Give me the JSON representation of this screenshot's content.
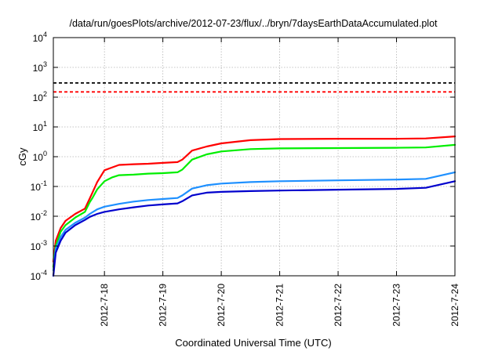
{
  "chart_data": {
    "type": "line",
    "title": "/data/run/goesPlots/archive/2012-07-23/flux/../bryn/7daysEarthDataAccumulated.plot",
    "xlabel": "Coordinated Universal Time (UTC)",
    "ylabel": "cGy",
    "xlim": [
      "2012-07-17 03:00",
      "2012-07-24 00:00"
    ],
    "ylim": [
      0.0001,
      10000
    ],
    "yscale": "log",
    "grid": true,
    "x_ticks": [
      "2012-7-18",
      "2012-7-19",
      "2012-7-20",
      "2012-7-21",
      "2012-7-22",
      "2012-7-23",
      "2012-7-24"
    ],
    "y_ticks": [
      {
        "base": "10",
        "exp": "-4",
        "value": 0.0001
      },
      {
        "base": "10",
        "exp": "-3",
        "value": 0.001
      },
      {
        "base": "10",
        "exp": "-2",
        "value": 0.01
      },
      {
        "base": "10",
        "exp": "-1",
        "value": 0.1
      },
      {
        "base": "10",
        "exp": "0",
        "value": 1
      },
      {
        "base": "10",
        "exp": "1",
        "value": 10
      },
      {
        "base": "10",
        "exp": "2",
        "value": 100
      },
      {
        "base": "10",
        "exp": "3",
        "value": 1000
      },
      {
        "base": "10",
        "exp": "4",
        "value": 10000
      }
    ],
    "thresholds": [
      {
        "value": 300,
        "color": "#000000",
        "style": "dashed"
      },
      {
        "value": 150,
        "color": "#ff0000",
        "style": "dashed"
      }
    ],
    "series": [
      {
        "color": "#ff0000",
        "x": [
          "2012-07-17 03:00",
          "2012-07-17 04:00",
          "2012-07-17 06:00",
          "2012-07-17 08:00",
          "2012-07-17 12:00",
          "2012-07-17 16:00",
          "2012-07-17 18:00",
          "2012-07-17 19:00",
          "2012-07-17 21:00",
          "2012-07-18 00:00",
          "2012-07-18 03:00",
          "2012-07-18 06:00",
          "2012-07-18 12:00",
          "2012-07-18 18:00",
          "2012-07-19 00:00",
          "2012-07-19 06:00",
          "2012-07-19 08:00",
          "2012-07-19 12:00",
          "2012-07-19 18:00",
          "2012-07-20 00:00",
          "2012-07-20 12:00",
          "2012-07-21 00:00",
          "2012-07-22 00:00",
          "2012-07-23 00:00",
          "2012-07-23 12:00",
          "2012-07-24 00:00"
        ],
        "values": [
          0.0003,
          0.0015,
          0.004,
          0.007,
          0.012,
          0.018,
          0.04,
          0.06,
          0.14,
          0.35,
          0.43,
          0.53,
          0.56,
          0.58,
          0.62,
          0.66,
          0.8,
          1.6,
          2.2,
          2.8,
          3.6,
          3.9,
          4.0,
          4.0,
          4.1,
          4.8
        ]
      },
      {
        "color": "#00ee00",
        "x": [
          "2012-07-17 03:00",
          "2012-07-17 04:00",
          "2012-07-17 06:00",
          "2012-07-17 08:00",
          "2012-07-17 12:00",
          "2012-07-17 16:00",
          "2012-07-17 18:00",
          "2012-07-17 19:00",
          "2012-07-17 21:00",
          "2012-07-18 00:00",
          "2012-07-18 03:00",
          "2012-07-18 06:00",
          "2012-07-18 12:00",
          "2012-07-18 18:00",
          "2012-07-19 00:00",
          "2012-07-19 06:00",
          "2012-07-19 08:00",
          "2012-07-19 12:00",
          "2012-07-19 18:00",
          "2012-07-20 00:00",
          "2012-07-20 12:00",
          "2012-07-21 00:00",
          "2012-07-22 00:00",
          "2012-07-23 00:00",
          "2012-07-23 12:00",
          "2012-07-24 00:00"
        ],
        "values": [
          0.0002,
          0.001,
          0.003,
          0.005,
          0.009,
          0.014,
          0.03,
          0.04,
          0.08,
          0.15,
          0.2,
          0.24,
          0.25,
          0.27,
          0.28,
          0.3,
          0.37,
          0.8,
          1.2,
          1.5,
          1.8,
          1.9,
          1.95,
          2.0,
          2.05,
          2.5
        ]
      },
      {
        "color": "#1e90ff",
        "x": [
          "2012-07-17 03:00",
          "2012-07-17 04:00",
          "2012-07-17 06:00",
          "2012-07-17 08:00",
          "2012-07-17 12:00",
          "2012-07-17 16:00",
          "2012-07-17 18:00",
          "2012-07-17 21:00",
          "2012-07-18 00:00",
          "2012-07-18 06:00",
          "2012-07-18 12:00",
          "2012-07-18 18:00",
          "2012-07-19 00:00",
          "2012-07-19 06:00",
          "2012-07-19 08:00",
          "2012-07-19 12:00",
          "2012-07-19 18:00",
          "2012-07-20 00:00",
          "2012-07-20 12:00",
          "2012-07-21 00:00",
          "2012-07-22 00:00",
          "2012-07-23 00:00",
          "2012-07-23 12:00",
          "2012-07-24 00:00"
        ],
        "values": [
          0.00015,
          0.0008,
          0.002,
          0.0035,
          0.006,
          0.009,
          0.012,
          0.017,
          0.021,
          0.026,
          0.031,
          0.035,
          0.038,
          0.041,
          0.05,
          0.085,
          0.11,
          0.125,
          0.14,
          0.15,
          0.16,
          0.17,
          0.18,
          0.3
        ]
      },
      {
        "color": "#0000cd",
        "x": [
          "2012-07-17 03:00",
          "2012-07-17 04:00",
          "2012-07-17 06:00",
          "2012-07-17 08:00",
          "2012-07-17 12:00",
          "2012-07-17 16:00",
          "2012-07-17 18:00",
          "2012-07-17 21:00",
          "2012-07-18 00:00",
          "2012-07-18 06:00",
          "2012-07-18 12:00",
          "2012-07-18 18:00",
          "2012-07-19 00:00",
          "2012-07-19 06:00",
          "2012-07-19 08:00",
          "2012-07-19 12:00",
          "2012-07-19 18:00",
          "2012-07-20 00:00",
          "2012-07-20 12:00",
          "2012-07-21 00:00",
          "2012-07-22 00:00",
          "2012-07-23 00:00",
          "2012-07-23 12:00",
          "2012-07-24 00:00"
        ],
        "values": [
          0.0001,
          0.0006,
          0.0015,
          0.0028,
          0.005,
          0.0075,
          0.0095,
          0.012,
          0.014,
          0.017,
          0.02,
          0.023,
          0.025,
          0.027,
          0.032,
          0.05,
          0.062,
          0.066,
          0.07,
          0.073,
          0.078,
          0.083,
          0.09,
          0.15
        ]
      }
    ]
  }
}
